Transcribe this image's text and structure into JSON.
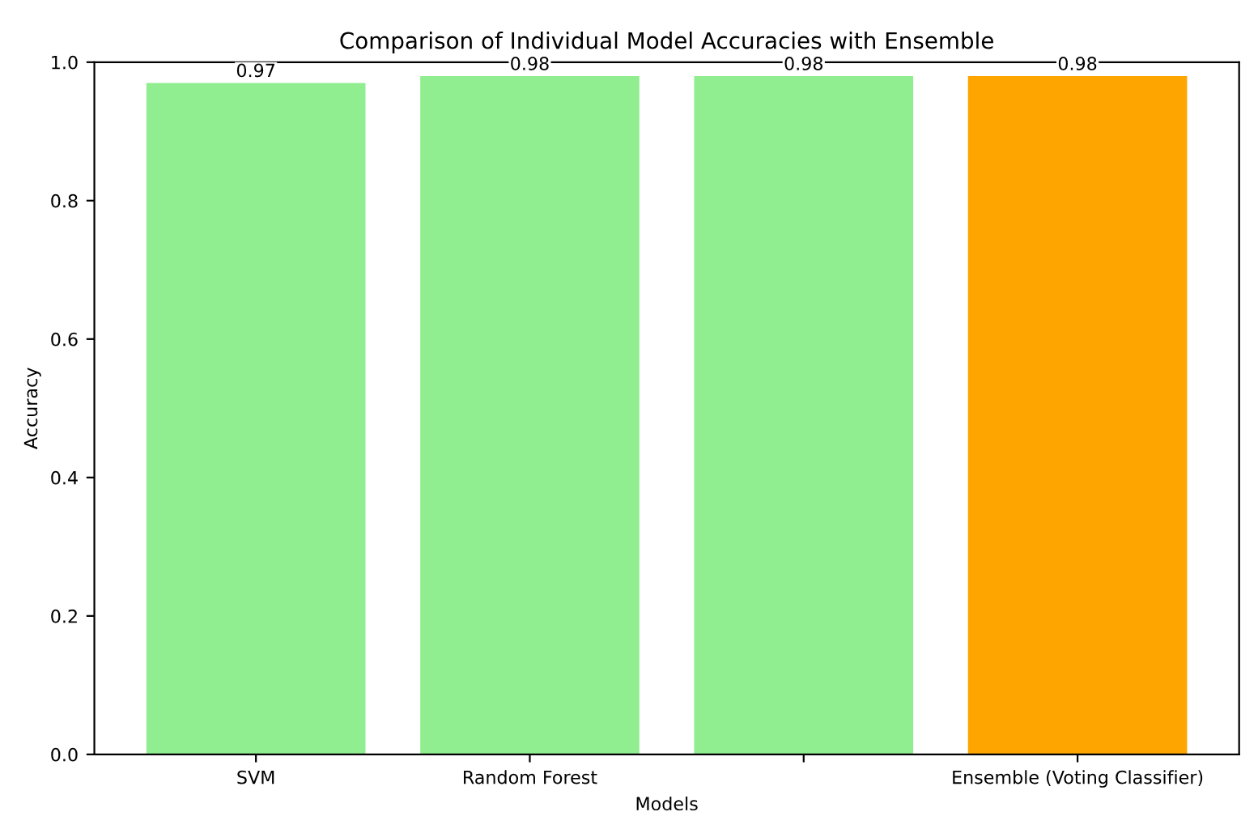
{
  "chart_data": {
    "type": "bar",
    "title": "Comparison of Individual Model Accuracies with Ensemble",
    "xlabel": "Models",
    "ylabel": "Accuracy",
    "categories": [
      "SVM",
      "Random Forest",
      null,
      "Ensemble (Voting Classifier)"
    ],
    "values": [
      0.97,
      0.98,
      0.98,
      0.98
    ],
    "colors": [
      "#90ee90",
      "#90ee90",
      "#90ee90",
      "#ffa500"
    ],
    "ylim": [
      0,
      1
    ],
    "yticks": [
      {
        "value": 0,
        "label": "0.0"
      },
      {
        "value": 0.2,
        "label": "0.2"
      },
      {
        "value": 0.4,
        "label": "0.4"
      },
      {
        "value": 0.6,
        "label": "0.6"
      },
      {
        "value": 0.8,
        "label": "0.8"
      },
      {
        "value": 1,
        "label": "1.0"
      }
    ],
    "data_labels": true,
    "grid": false
  }
}
